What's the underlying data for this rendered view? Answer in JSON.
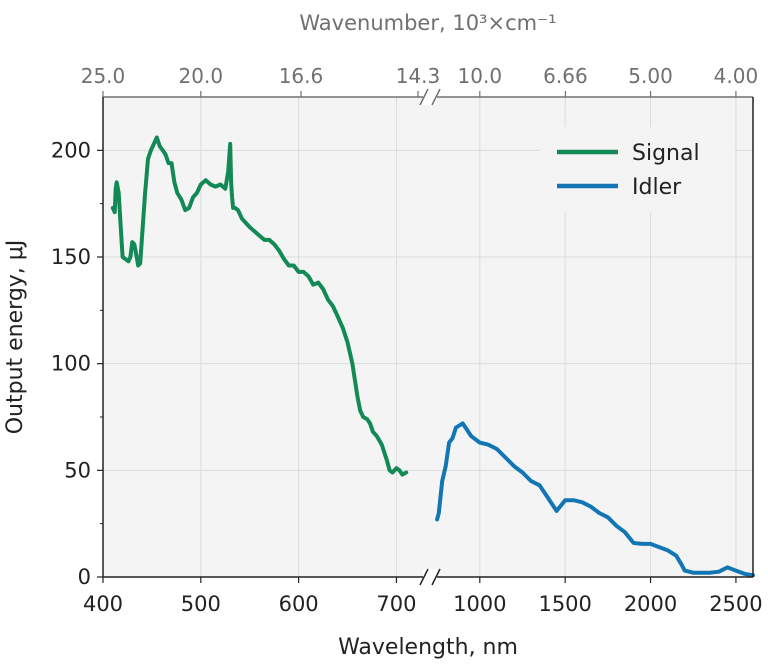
{
  "chart_data": {
    "type": "line",
    "xlabel": "Wavelength, nm",
    "ylabel": "Output energy, μJ",
    "top_xlabel": "Wavenumber, 10³×cm⁻¹",
    "ylim": [
      0,
      225
    ],
    "grid": true,
    "legend_placement": "top-right",
    "y_ticks": [
      "0",
      "50",
      "100",
      "150",
      "200"
    ],
    "x_segments": [
      {
        "name": "signal-range",
        "scale": "linear",
        "xlim": [
          400,
          720
        ],
        "ticks": [
          "400",
          "500",
          "600",
          "700"
        ]
      },
      {
        "name": "idler-range",
        "scale": "linear",
        "xlim": [
          720,
          2600
        ],
        "ticks": [
          "1000",
          "1500",
          "2000",
          "2500"
        ]
      }
    ],
    "top_ticks": [
      "25.0",
      "20.0",
      "16.6",
      "14.3",
      "10.0",
      "6.66",
      "5.00",
      "4.00"
    ],
    "series": [
      {
        "name": "Signal",
        "color": "#138a55",
        "segment": "signal-range",
        "x": [
          410,
          412,
          413,
          414,
          416,
          418,
          420,
          423,
          426,
          428,
          430,
          432,
          434,
          436,
          438,
          440,
          443,
          446,
          449,
          452,
          455,
          458,
          461,
          464,
          467,
          470,
          473,
          476,
          480,
          484,
          488,
          492,
          496,
          500,
          505,
          510,
          515,
          520,
          525,
          528,
          530,
          531,
          532,
          533,
          535,
          538,
          542,
          546,
          550,
          555,
          560,
          565,
          570,
          575,
          580,
          585,
          590,
          595,
          600,
          605,
          610,
          615,
          620,
          625,
          630,
          635,
          640,
          645,
          650,
          655,
          660,
          663,
          666,
          670,
          673,
          676,
          680,
          685,
          690,
          693,
          696,
          700,
          703,
          706,
          710
        ],
        "y": [
          173,
          171,
          182,
          185,
          180,
          165,
          150,
          149,
          148,
          150,
          157,
          156,
          151,
          146,
          147,
          160,
          180,
          196,
          200,
          203,
          206,
          202,
          200,
          198,
          194,
          194,
          185,
          180,
          177,
          172,
          173,
          178,
          180,
          184,
          186,
          184,
          183,
          184,
          182,
          190,
          203,
          185,
          178,
          173,
          173,
          172,
          168,
          166,
          164,
          162,
          160,
          158,
          158,
          156,
          153,
          149,
          146,
          146,
          143,
          143,
          141,
          137,
          138,
          135,
          130,
          127,
          122,
          117,
          110,
          100,
          85,
          78,
          75,
          74,
          72,
          68,
          66,
          62,
          55,
          50,
          49,
          51,
          50,
          48,
          49
        ]
      },
      {
        "name": "Idler",
        "color": "#1276b5",
        "segment": "idler-range",
        "x": [
          750,
          760,
          780,
          800,
          820,
          840,
          860,
          880,
          900,
          950,
          1000,
          1050,
          1100,
          1150,
          1200,
          1250,
          1300,
          1350,
          1400,
          1450,
          1500,
          1550,
          1600,
          1650,
          1700,
          1750,
          1800,
          1850,
          1900,
          1950,
          2000,
          2050,
          2100,
          2150,
          2180,
          2200,
          2250,
          2300,
          2350,
          2400,
          2450,
          2500,
          2550,
          2600
        ],
        "y": [
          27,
          30,
          45,
          52,
          63,
          65,
          70,
          71,
          72,
          66,
          63,
          62,
          60,
          56,
          52,
          49,
          45,
          43,
          37,
          31,
          36,
          36,
          35,
          33,
          30,
          28,
          24,
          21,
          16,
          15.5,
          15.5,
          14,
          12.5,
          10,
          6,
          3,
          2,
          2,
          2,
          2.5,
          4.5,
          3,
          1.5,
          0.8
        ]
      }
    ]
  }
}
